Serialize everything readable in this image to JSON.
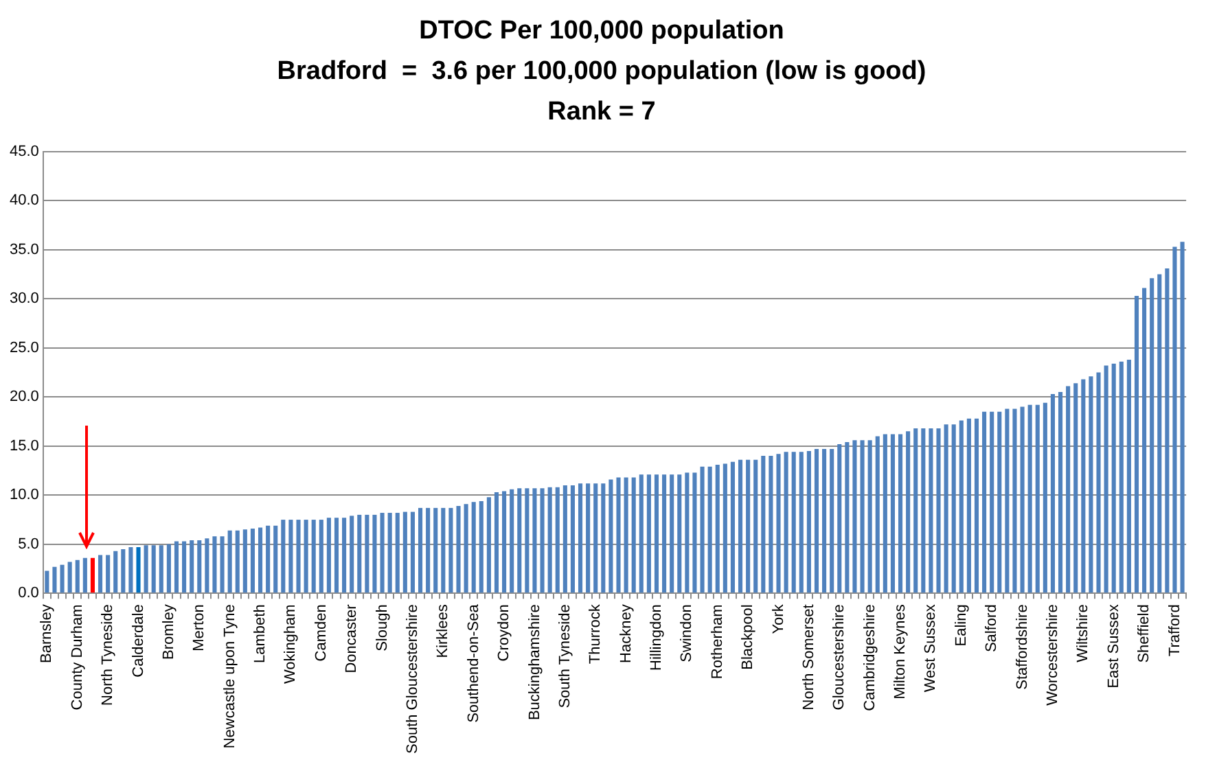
{
  "chart_data": {
    "type": "bar",
    "title": [
      "DTOC Per 100,000 population",
      "Bradford  =  3.6 per 100,000 population (low is good)",
      "Rank = 7"
    ],
    "categories": [
      "Barnsley",
      null,
      null,
      null,
      "County Durham",
      null,
      null,
      null,
      "North Tyneside",
      null,
      null,
      null,
      "Calderdale",
      null,
      null,
      null,
      "Bromley",
      null,
      null,
      null,
      "Merton",
      null,
      null,
      null,
      "Newcastle upon Tyne",
      null,
      null,
      null,
      "Lambeth",
      null,
      null,
      null,
      "Wokingham",
      null,
      null,
      null,
      "Camden",
      null,
      null,
      null,
      "Doncaster",
      null,
      null,
      null,
      "Slough",
      null,
      null,
      null,
      "South Gloucestershire",
      null,
      null,
      null,
      "Kirklees",
      null,
      null,
      null,
      "Southend-on-Sea",
      null,
      null,
      null,
      "Croydon",
      null,
      null,
      null,
      "Buckinghamshire",
      null,
      null,
      null,
      "South Tyneside",
      null,
      null,
      null,
      "Thurrock",
      null,
      null,
      null,
      "Hackney",
      null,
      null,
      null,
      "Hillingdon",
      null,
      null,
      null,
      "Swindon",
      null,
      null,
      null,
      "Rotherham",
      null,
      null,
      null,
      "Blackpool",
      null,
      null,
      null,
      "York",
      null,
      null,
      null,
      "North Somerset",
      null,
      null,
      null,
      "Gloucestershire",
      null,
      null,
      null,
      "Cambridgeshire",
      null,
      null,
      null,
      "Milton Keynes",
      null,
      null,
      null,
      "West Sussex",
      null,
      null,
      null,
      "Ealing",
      null,
      null,
      null,
      "Salford",
      null,
      null,
      null,
      "Staffordshire",
      null,
      null,
      null,
      "Worcestershire",
      null,
      null,
      null,
      "Wiltshire",
      null,
      null,
      null,
      "East Sussex",
      null,
      null,
      null,
      "Sheffield",
      null,
      null,
      null,
      "Trafford",
      null
    ],
    "values": [
      2.3,
      2.7,
      2.9,
      3.2,
      3.4,
      3.6,
      3.6,
      3.9,
      3.9,
      4.3,
      4.5,
      4.7,
      4.7,
      4.9,
      4.9,
      4.9,
      5.0,
      5.3,
      5.3,
      5.4,
      5.4,
      5.6,
      5.8,
      5.8,
      6.4,
      6.4,
      6.5,
      6.6,
      6.7,
      6.9,
      6.9,
      7.5,
      7.5,
      7.5,
      7.5,
      7.5,
      7.5,
      7.7,
      7.7,
      7.7,
      7.9,
      8.0,
      8.0,
      8.0,
      8.2,
      8.2,
      8.2,
      8.3,
      8.3,
      8.7,
      8.7,
      8.7,
      8.7,
      8.7,
      8.9,
      9.1,
      9.3,
      9.4,
      9.8,
      10.3,
      10.4,
      10.6,
      10.7,
      10.7,
      10.7,
      10.7,
      10.8,
      10.8,
      11.0,
      11.0,
      11.2,
      11.2,
      11.2,
      11.2,
      11.6,
      11.8,
      11.8,
      11.8,
      12.1,
      12.1,
      12.1,
      12.1,
      12.1,
      12.1,
      12.3,
      12.3,
      12.9,
      12.9,
      13.1,
      13.2,
      13.4,
      13.6,
      13.6,
      13.6,
      14.0,
      14.0,
      14.2,
      14.4,
      14.4,
      14.4,
      14.5,
      14.7,
      14.7,
      14.7,
      15.2,
      15.4,
      15.6,
      15.6,
      15.6,
      16.0,
      16.2,
      16.2,
      16.2,
      16.5,
      16.8,
      16.8,
      16.8,
      16.8,
      17.2,
      17.2,
      17.6,
      17.8,
      17.8,
      18.5,
      18.5,
      18.5,
      18.8,
      18.8,
      19.0,
      19.2,
      19.2,
      19.4,
      20.3,
      20.5,
      21.1,
      21.4,
      21.8,
      22.1,
      22.5,
      23.2,
      23.4,
      23.6,
      23.8,
      30.3,
      31.1,
      32.1,
      32.5,
      33.1,
      35.3,
      35.8
    ],
    "colors": [
      "#4f81bd",
      "#4f81bd",
      "#4f81bd",
      "#4f81bd",
      "#4f81bd",
      "#4f81bd",
      "#ff0000",
      "#4f81bd",
      "#4f81bd",
      "#4f81bd",
      "#4f81bd",
      "#4f81bd",
      "#0070c0",
      "#4f81bd",
      "#4f81bd",
      "#4f81bd",
      "#4f81bd",
      "#4f81bd",
      "#4f81bd",
      "#4f81bd",
      "#4f81bd",
      "#4f81bd",
      "#4f81bd",
      "#4f81bd",
      "#4f81bd",
      "#4f81bd",
      "#4f81bd",
      "#4f81bd",
      "#4f81bd",
      "#4f81bd",
      "#4f81bd",
      "#4f81bd",
      "#4f81bd",
      "#4f81bd",
      "#4f81bd",
      "#4f81bd",
      "#4f81bd",
      "#4f81bd",
      "#4f81bd",
      "#4f81bd",
      "#4f81bd",
      "#4f81bd",
      "#4f81bd",
      "#4f81bd",
      "#4f81bd",
      "#4f81bd",
      "#4f81bd",
      "#4f81bd",
      "#4f81bd",
      "#4f81bd",
      "#4f81bd",
      "#4f81bd",
      "#4f81bd",
      "#4f81bd",
      "#4f81bd",
      "#4f81bd",
      "#4f81bd",
      "#4f81bd",
      "#4f81bd",
      "#4f81bd",
      "#4f81bd",
      "#4f81bd",
      "#4f81bd",
      "#4f81bd",
      "#4f81bd",
      "#4f81bd",
      "#4f81bd",
      "#4f81bd",
      "#4f81bd",
      "#4f81bd",
      "#4f81bd",
      "#4f81bd",
      "#4f81bd",
      "#4f81bd",
      "#4f81bd",
      "#4f81bd",
      "#4f81bd",
      "#4f81bd",
      "#4f81bd",
      "#4f81bd",
      "#4f81bd",
      "#4f81bd",
      "#4f81bd",
      "#4f81bd",
      "#4f81bd",
      "#4f81bd",
      "#4f81bd",
      "#4f81bd",
      "#4f81bd",
      "#4f81bd",
      "#4f81bd",
      "#4f81bd",
      "#4f81bd",
      "#4f81bd",
      "#4f81bd",
      "#4f81bd",
      "#4f81bd",
      "#4f81bd",
      "#4f81bd",
      "#4f81bd",
      "#4f81bd",
      "#4f81bd",
      "#4f81bd",
      "#4f81bd",
      "#4f81bd",
      "#4f81bd",
      "#4f81bd",
      "#4f81bd",
      "#4f81bd",
      "#4f81bd",
      "#4f81bd",
      "#4f81bd",
      "#4f81bd",
      "#4f81bd",
      "#4f81bd",
      "#4f81bd",
      "#4f81bd",
      "#4f81bd",
      "#4f81bd",
      "#4f81bd",
      "#4f81bd",
      "#4f81bd",
      "#4f81bd",
      "#4f81bd",
      "#4f81bd",
      "#4f81bd",
      "#4f81bd",
      "#4f81bd",
      "#4f81bd",
      "#4f81bd",
      "#4f81bd",
      "#4f81bd",
      "#4f81bd",
      "#4f81bd",
      "#4f81bd",
      "#4f81bd",
      "#4f81bd",
      "#4f81bd",
      "#4f81bd",
      "#4f81bd",
      "#4f81bd",
      "#4f81bd",
      "#4f81bd",
      "#4f81bd",
      "#4f81bd",
      "#4f81bd",
      "#4f81bd",
      "#4f81bd",
      "#4f81bd",
      "#4f81bd"
    ],
    "ylim": [
      0,
      45
    ],
    "yticks": [
      {
        "value": 0,
        "label": "0.0"
      },
      {
        "value": 5,
        "label": "5.0"
      },
      {
        "value": 10,
        "label": "10.0"
      },
      {
        "value": 15,
        "label": "15.0"
      },
      {
        "value": 20,
        "label": "20.0"
      },
      {
        "value": 25,
        "label": "25.0"
      },
      {
        "value": 30,
        "label": "30.0"
      },
      {
        "value": 35,
        "label": "35.0"
      },
      {
        "value": 40,
        "label": "40.0"
      },
      {
        "value": 45,
        "label": "45.0"
      }
    ],
    "grid": "y",
    "legend": false
  }
}
